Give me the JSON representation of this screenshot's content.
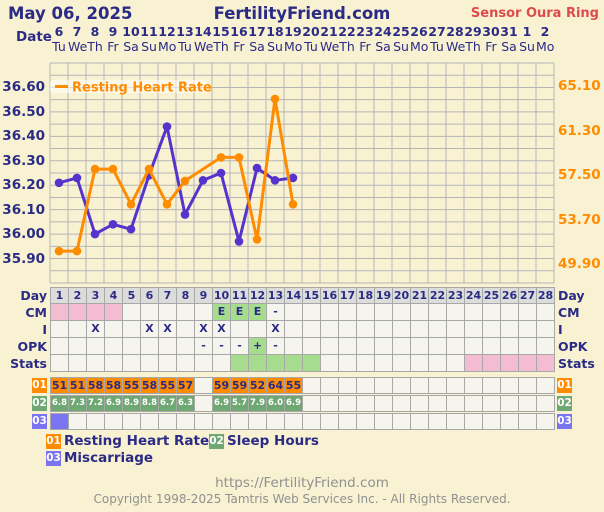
{
  "header": {
    "date": "May 06, 2025",
    "site": "FertilityFriend.com",
    "sensor": "Sensor Oura Ring"
  },
  "date_row": {
    "label": "Date",
    "columns": [
      {
        "date": "6",
        "dow": "Tu"
      },
      {
        "date": "7",
        "dow": "We"
      },
      {
        "date": "8",
        "dow": "Th"
      },
      {
        "date": "9",
        "dow": "Fr"
      },
      {
        "date": "10",
        "dow": "Sa"
      },
      {
        "date": "11",
        "dow": "Su"
      },
      {
        "date": "12",
        "dow": "Mo"
      },
      {
        "date": "13",
        "dow": "Tu"
      },
      {
        "date": "14",
        "dow": "We"
      },
      {
        "date": "15",
        "dow": "Th"
      },
      {
        "date": "16",
        "dow": "Fr"
      },
      {
        "date": "17",
        "dow": "Sa"
      },
      {
        "date": "18",
        "dow": "Su"
      },
      {
        "date": "19",
        "dow": "Mo"
      },
      {
        "date": "20",
        "dow": "Tu"
      },
      {
        "date": "21",
        "dow": "We"
      },
      {
        "date": "22",
        "dow": "Th"
      },
      {
        "date": "23",
        "dow": "Fr"
      },
      {
        "date": "24",
        "dow": "Sa"
      },
      {
        "date": "25",
        "dow": "Su"
      },
      {
        "date": "26",
        "dow": "Mo"
      },
      {
        "date": "27",
        "dow": "Tu"
      },
      {
        "date": "28",
        "dow": "We"
      },
      {
        "date": "29",
        "dow": "Th"
      },
      {
        "date": "30",
        "dow": "Fr"
      },
      {
        "date": "31",
        "dow": "Sa"
      },
      {
        "date": "1",
        "dow": "Su"
      },
      {
        "date": "2",
        "dow": "Mo"
      }
    ]
  },
  "chart_data": {
    "type": "line",
    "in_chart_legend": "Resting Heart Rate",
    "grid": {
      "columns": 28,
      "rows": 18
    },
    "left_axis": {
      "ticks": [
        "36.60",
        "36.50",
        "36.40",
        "36.30",
        "36.20",
        "36.10",
        "36.00",
        "35.90"
      ],
      "min": 35.8,
      "max": 36.7
    },
    "right_axis": {
      "ticks": [
        "65.10",
        "61.30",
        "57.50",
        "53.70",
        "49.90"
      ]
    },
    "series": [
      {
        "name": "Temperature",
        "axis": "left",
        "color": "#5633cc",
        "values": [
          36.21,
          36.23,
          36.0,
          36.04,
          36.02,
          36.24,
          36.44,
          36.08,
          36.22,
          36.25,
          35.97,
          36.27,
          36.22,
          36.23
        ]
      },
      {
        "name": "Resting Heart Rate",
        "axis": "right",
        "color": "#ff8c00",
        "values": [
          51,
          51,
          58,
          58,
          55,
          58,
          55,
          57,
          null,
          59,
          59,
          52,
          64,
          55
        ]
      }
    ]
  },
  "table": {
    "day_numbers": [
      "1",
      "2",
      "3",
      "4",
      "5",
      "6",
      "7",
      "8",
      "9",
      "10",
      "11",
      "12",
      "13",
      "14",
      "15",
      "16",
      "17",
      "18",
      "19",
      "20",
      "21",
      "22",
      "23",
      "24",
      "25",
      "26",
      "27",
      "28"
    ],
    "rows": [
      {
        "id": "day",
        "label": "Day",
        "fill_day_numbers": true,
        "default_class": "hdr",
        "cells": {}
      },
      {
        "id": "cm",
        "label": "CM",
        "cells": {
          "1": {
            "c": "pink"
          },
          "2": {
            "c": "pink"
          },
          "3": {
            "c": "pink"
          },
          "4": {
            "c": "pink"
          },
          "10": {
            "t": "E",
            "c": "lgreen"
          },
          "11": {
            "t": "E",
            "c": "lgreen"
          },
          "12": {
            "t": "E",
            "c": "lgreen"
          },
          "13": {
            "t": "-"
          }
        }
      },
      {
        "id": "i",
        "label": "I",
        "cells": {
          "3": {
            "t": "X"
          },
          "6": {
            "t": "X"
          },
          "7": {
            "t": "X"
          },
          "9": {
            "t": "X"
          },
          "10": {
            "t": "X"
          },
          "13": {
            "t": "X"
          }
        }
      },
      {
        "id": "opk",
        "label": "OPK",
        "cells": {
          "9": {
            "t": "-"
          },
          "10": {
            "t": "-"
          },
          "11": {
            "t": "-"
          },
          "12": {
            "t": "+",
            "c": "lgreen"
          },
          "13": {
            "t": "-"
          }
        }
      },
      {
        "id": "stats",
        "label": "Stats",
        "cells": {
          "11": {
            "c": "lgreen"
          },
          "12": {
            "c": "lgreen"
          },
          "13": {
            "c": "lgreen"
          },
          "14": {
            "c": "lgreen"
          },
          "15": {
            "c": "lgreen"
          },
          "24": {
            "c": "pink"
          },
          "25": {
            "c": "pink"
          },
          "26": {
            "c": "pink"
          },
          "27": {
            "c": "pink"
          },
          "28": {
            "c": "pink"
          }
        }
      },
      {
        "id": "r01",
        "label": "01",
        "badge": "orange",
        "cells": {
          "1": {
            "t": "51",
            "c": "orange"
          },
          "2": {
            "t": "51",
            "c": "orange"
          },
          "3": {
            "t": "58",
            "c": "orange"
          },
          "4": {
            "t": "58",
            "c": "orange"
          },
          "5": {
            "t": "55",
            "c": "orange"
          },
          "6": {
            "t": "58",
            "c": "orange"
          },
          "7": {
            "t": "55",
            "c": "orange"
          },
          "8": {
            "t": "57",
            "c": "orange"
          },
          "10": {
            "t": "59",
            "c": "orange"
          },
          "11": {
            "t": "59",
            "c": "orange"
          },
          "12": {
            "t": "52",
            "c": "orange"
          },
          "13": {
            "t": "64",
            "c": "orange"
          },
          "14": {
            "t": "55",
            "c": "orange"
          }
        }
      },
      {
        "id": "r02",
        "label": "02",
        "badge": "green",
        "cells": {
          "1": {
            "t": "6.8",
            "c": "mgreen"
          },
          "2": {
            "t": "7.3",
            "c": "mgreen"
          },
          "3": {
            "t": "7.2",
            "c": "mgreen"
          },
          "4": {
            "t": "6.9",
            "c": "mgreen"
          },
          "5": {
            "t": "8.9",
            "c": "mgreen"
          },
          "6": {
            "t": "8.8",
            "c": "mgreen"
          },
          "7": {
            "t": "6.7",
            "c": "mgreen"
          },
          "8": {
            "t": "6.3",
            "c": "mgreen"
          },
          "10": {
            "t": "6.9",
            "c": "mgreen"
          },
          "11": {
            "t": "5.7",
            "c": "mgreen"
          },
          "12": {
            "t": "7.9",
            "c": "mgreen"
          },
          "13": {
            "t": "6.0",
            "c": "mgreen"
          },
          "14": {
            "t": "6.9",
            "c": "mgreen"
          }
        }
      },
      {
        "id": "r03",
        "label": "03",
        "badge": "blue",
        "cells": {
          "1": {
            "c": "bluecell"
          }
        }
      }
    ]
  },
  "legend": [
    {
      "num": "01",
      "label": "Resting Heart Rate",
      "color": "orange"
    },
    {
      "num": "02",
      "label": "Sleep Hours",
      "color": "green"
    },
    {
      "num": "03",
      "label": "Miscarriage",
      "color": "blue"
    }
  ],
  "footer": {
    "url": "https://FertilityFriend.com",
    "copyright": "Copyright 1998-2025 Tamtris Web Services Inc. - All Rights Reserved."
  },
  "colors": {
    "background": "#f8f2d3",
    "navy": "#2b2b85",
    "orange": "#ff8c00",
    "purple": "#5633cc",
    "sensor_red": "#dd4b4b",
    "pink": "#f3bcd0",
    "light_green": "#a6dc8e",
    "medium_green": "#6fa873",
    "badge_blue": "#7b74f0",
    "grid": "#b5b5b5"
  }
}
